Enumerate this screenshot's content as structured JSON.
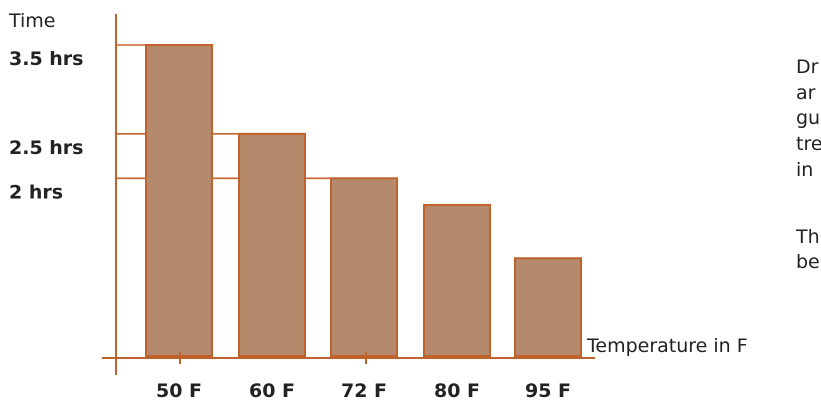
{
  "chart_data": {
    "type": "bar",
    "categories": [
      "50 F",
      "60 F",
      "72 F",
      "80 F",
      "95 F"
    ],
    "values": [
      3.5,
      2.5,
      2.0,
      1.7,
      1.1
    ],
    "ylabel": "Time",
    "xlabel": "Temperature in F",
    "yticks": [
      {
        "value": 3.5,
        "label": "3.5 hrs"
      },
      {
        "value": 2.5,
        "label": "2.5 hrs"
      },
      {
        "value": 2.0,
        "label": "2 hrs"
      }
    ],
    "ylim": [
      0,
      4
    ],
    "grid": false
  },
  "side_text": {
    "lines": [
      "Dr",
      "ar",
      "gu",
      "tre",
      "in",
      "Th",
      "be"
    ]
  },
  "colors": {
    "bar_fill": "#b4896c",
    "bar_outline": "#c0622c",
    "axis": "#c0622c",
    "text": "#222222"
  }
}
